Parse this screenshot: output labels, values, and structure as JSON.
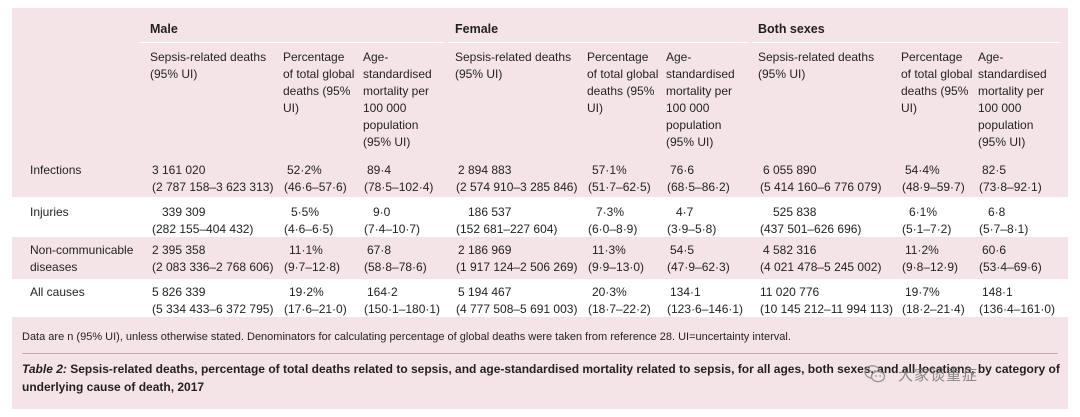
{
  "groups": [
    "Male",
    "Female",
    "Both sexes"
  ],
  "subheaders": {
    "deaths": "Sepsis-related deaths (95% UI)",
    "percentage": "Percentage of total global deaths (95% UI)",
    "mortality": "Age-standardised mortality per 100 000 population (95% UI)"
  },
  "rows": [
    {
      "label": "Infections",
      "cells": [
        [
          "3 161 020",
          "(2 787 158–3 623 313)"
        ],
        [
          "52·2%",
          "(46·6–57·6)"
        ],
        [
          "89·4",
          "(78·5–102·4)"
        ],
        [
          "2 894 883",
          "(2 574 910–3 285 846)"
        ],
        [
          "57·1%",
          "(51·7–62·5)"
        ],
        [
          "76·6",
          "(68·5–86·2)"
        ],
        [
          "6 055 890",
          "(5 414 160–6 776 079)"
        ],
        [
          "54·4%",
          "(48·9–59·7)"
        ],
        [
          "82·5",
          "(73·8–92·1)"
        ]
      ]
    },
    {
      "label": "Injuries",
      "cells": [
        [
          "339 309",
          "(282 155–404 432)"
        ],
        [
          "5·5%",
          "(4·6–6·5)"
        ],
        [
          "9·0",
          "(7·4–10·7)"
        ],
        [
          "186 537",
          "(152 681–227 604)"
        ],
        [
          "7·3%",
          "(6·0–8·9)"
        ],
        [
          "4·7",
          "(3·9–5·8)"
        ],
        [
          "525 838",
          "(437 501–626 696)"
        ],
        [
          "6·1%",
          "(5·1–7·2)"
        ],
        [
          "6·8",
          "(5·7–8·1)"
        ]
      ]
    },
    {
      "label": "Non-communicable diseases",
      "cells": [
        [
          "2 395 358",
          "(2 083 336–2 768 606)"
        ],
        [
          "11·1%",
          "(9·7–12·8)"
        ],
        [
          "67·8",
          "(58·8–78·6)"
        ],
        [
          "2 186 969",
          "(1 917 124–2 506 269)"
        ],
        [
          "11·3%",
          "(9·9–13·0)"
        ],
        [
          "54·5",
          "(47·9–62·3)"
        ],
        [
          "4 582 316",
          "(4 021 478–5 245 002)"
        ],
        [
          "11·2%",
          "(9·8–12·9)"
        ],
        [
          "60·6",
          "(53·4–69·6)"
        ]
      ]
    },
    {
      "label": "All causes",
      "cells": [
        [
          "5 826 339",
          "(5 334 433–6 372 795)"
        ],
        [
          "19·2%",
          "(17·6–21·0)"
        ],
        [
          "164·2",
          "(150·1–180·1)"
        ],
        [
          "5 194 467",
          "(4 777 508–5 691 003)"
        ],
        [
          "20·3%",
          "(18·7–22·2)"
        ],
        [
          "134·1",
          "(123·6–146·1)"
        ],
        [
          "11 020 776",
          "(10 145 212–11 994 113)"
        ],
        [
          "19·7%",
          "(18·2–21·4)"
        ],
        [
          "148·1",
          "(136·4–161·0)"
        ]
      ]
    }
  ],
  "footnote": "Data are n (95% UI), unless otherwise stated. Denominators for calculating percentage of global deaths were taken from reference 28. UI=uncertainty interval.",
  "caption": {
    "title": "Table 2:",
    "body": " Sepsis-related deaths, percentage of total deaths related to sepsis, and age-standardised mortality related to sepsis, for all ages, both sexes, and all locations, by category of underlying cause of death, 2017"
  },
  "watermark": {
    "icon": "wechat-icon",
    "text": "大家谈重症"
  }
}
